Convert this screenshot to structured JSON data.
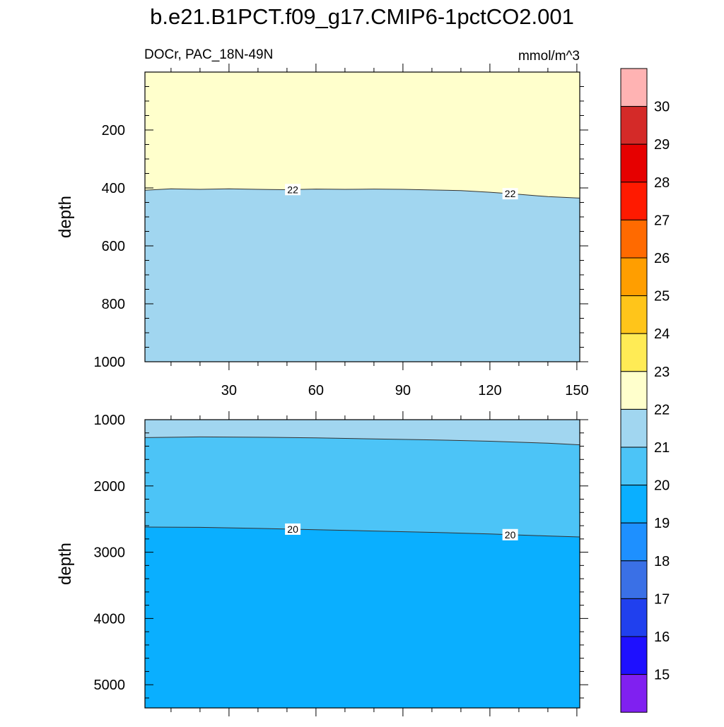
{
  "figure": {
    "title": "b.e21.B1PCT.f09_g17.CMIP6-1pctCO2.001",
    "left_string": "DOCr, PAC_18N-49N",
    "right_string": "mmol/m^3"
  },
  "chart_data": [
    {
      "type": "contour",
      "panel": "upper",
      "variable": "DOCr",
      "region": "PAC_18N-49N",
      "units": "mmol/m^3",
      "xlim": [
        1,
        151
      ],
      "ylim": [
        0,
        1000
      ],
      "y_inverted": true,
      "ylabel": "depth",
      "xlabel": "",
      "x_ticks": [
        30,
        60,
        90,
        120,
        150
      ],
      "y_ticks": [
        200,
        400,
        600,
        800,
        1000
      ],
      "contours": [
        {
          "level": 22,
          "label": "22",
          "label_positions": [
            52,
            127
          ],
          "x": [
            1,
            10,
            20,
            30,
            40,
            50,
            60,
            70,
            80,
            90,
            100,
            110,
            120,
            130,
            140,
            151
          ],
          "depth": [
            408,
            403,
            405,
            403,
            405,
            406,
            404,
            405,
            404,
            405,
            407,
            409,
            415,
            422,
            430,
            435
          ]
        }
      ],
      "fill_above_contour": "22-23",
      "fill_below_contour": "21-22"
    },
    {
      "type": "contour",
      "panel": "lower",
      "variable": "DOCr",
      "units": "mmol/m^3",
      "xlim": [
        1,
        151
      ],
      "ylim": [
        1000,
        5350
      ],
      "y_inverted": true,
      "ylabel": "depth",
      "xlabel": "",
      "y_ticks": [
        1000,
        2000,
        3000,
        4000,
        5000
      ],
      "contours": [
        {
          "level": 21,
          "label": "",
          "label_positions": [],
          "x": [
            1,
            20,
            40,
            60,
            80,
            100,
            120,
            140,
            151
          ],
          "depth": [
            1270,
            1260,
            1265,
            1275,
            1290,
            1305,
            1325,
            1355,
            1380
          ]
        },
        {
          "level": 20,
          "label": "20",
          "label_positions": [
            52,
            127
          ],
          "x": [
            1,
            20,
            40,
            60,
            80,
            100,
            120,
            140,
            151
          ],
          "depth": [
            2620,
            2625,
            2640,
            2660,
            2680,
            2700,
            2725,
            2755,
            2770
          ]
        }
      ],
      "bands_top_to_bottom": [
        "21-22",
        "20-21",
        "19-20"
      ]
    }
  ],
  "colorbar": {
    "orientation": "vertical",
    "labels": [
      "30",
      "29",
      "28",
      "27",
      "26",
      "25",
      "24",
      "23",
      "22",
      "21",
      "20",
      "19",
      "18",
      "17",
      "16",
      "15"
    ],
    "colors_top_to_bottom": [
      "#FFB3B3",
      "#D42A28",
      "#E60000",
      "#FF1A00",
      "#FF6A00",
      "#FF9E00",
      "#FFC51A",
      "#FFEB55",
      "#FFFFCC",
      "#A1D6F0",
      "#4CC4F7",
      "#0AAFFF",
      "#1E90FF",
      "#3A70E6",
      "#2040EE",
      "#1E10FF",
      "#8020F0"
    ]
  },
  "colors": {
    "band_22_23": "#FFFFCC",
    "band_21_22": "#A1D6F0",
    "band_20_21": "#4CC4F7",
    "band_19_20": "#0AAFFF"
  }
}
